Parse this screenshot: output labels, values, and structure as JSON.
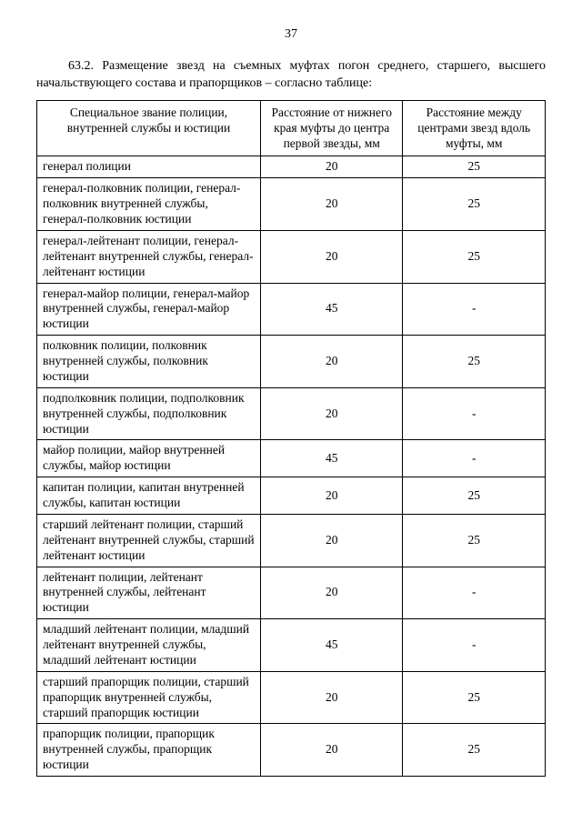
{
  "page_number": "37",
  "intro_text": "63.2. Размещение звезд на съемных муфтах погон среднего, старшего, высшего начальствующего состава и прапорщиков – согласно таблице:",
  "table": {
    "columns": [
      "Специальное звание полиции, внутренней службы и юстиции",
      "Расстояние от нижнего края муфты до центра первой звезды, мм",
      "Расстояние между центрами звезд вдоль муфты, мм"
    ],
    "col_align": [
      "left",
      "center",
      "center"
    ],
    "rows": [
      [
        "генерал полиции",
        "20",
        "25"
      ],
      [
        "генерал-полковник полиции, генерал-полковник внутренней службы, генерал-полковник юстиции",
        "20",
        "25"
      ],
      [
        "генерал-лейтенант полиции, генерал-лейтенант внутренней службы, генерал-лейтенант юстиции",
        "20",
        "25"
      ],
      [
        "генерал-майор полиции, генерал-майор внутренней службы, генерал-майор юстиции",
        "45",
        "-"
      ],
      [
        "полковник полиции, полковник внутренней службы, полковник юстиции",
        "20",
        "25"
      ],
      [
        "подполковник полиции, подполковник внутренней службы, подполковник юстиции",
        "20",
        "-"
      ],
      [
        "майор полиции, майор внутренней службы, майор юстиции",
        "45",
        "-"
      ],
      [
        "капитан полиции, капитан внутренней службы, капитан юстиции",
        "20",
        "25"
      ],
      [
        "старший лейтенант полиции, старший лейтенант внутренней службы, старший лейтенант юстиции",
        "20",
        "25"
      ],
      [
        "лейтенант полиции,  лейтенант внутренней службы, лейтенант юстиции",
        "20",
        "-"
      ],
      [
        "младший лейтенант полиции, младший лейтенант внутренней службы, младший лейтенант юстиции",
        "45",
        "-"
      ],
      [
        "старший прапорщик  полиции, старший прапорщик внутренней службы, старший прапорщик юстиции",
        "20",
        "25"
      ],
      [
        "прапорщик  полиции, прапорщик внутренней службы, прапорщик юстиции",
        "20",
        "25"
      ]
    ]
  }
}
